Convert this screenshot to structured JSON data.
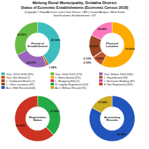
{
  "title": "Melung Rural Municipality, Dolakha District",
  "subtitle": "Status of Economic Establishments (Economic Census 2018)",
  "annotations": [
    "(Copyright © NepalArchives.Com | Data Source: CBS | Creator/Analysis: Milan Karki)",
    "Total Economic Establishments: 537"
  ],
  "legend_entries": [
    [
      {
        "name": "Year: 2013-2018 (225)",
        "color": "#3dbdbd"
      },
      {
        "name": "Year: Not Stated (7)",
        "color": "#cc5500"
      },
      {
        "name": "L: Traditional Market (1)",
        "color": "#aa4422"
      },
      {
        "name": "L: Other Locations (87)",
        "color": "#994422"
      },
      {
        "name": "Acct: With Record (444)",
        "color": "#2255bb"
      }
    ],
    [
      {
        "name": "Year: 2003-2013 (175)",
        "color": "#66bb44"
      },
      {
        "name": "L: Home Based (311)",
        "color": "#ffaa00"
      },
      {
        "name": "L: Shopping Mall (1)",
        "color": "#dd3366"
      },
      {
        "name": "R: Legally Registered (202)",
        "color": "#22aa44"
      },
      {
        "name": "Acct: Without Record (91)",
        "color": "#ccaa22"
      }
    ],
    [
      {
        "name": "Year: Before 2003 (130)",
        "color": "#9966bb"
      },
      {
        "name": "L: Road Based (98)",
        "color": "#bb5533"
      },
      {
        "name": "L: Exclusive Building (81)",
        "color": "#cc44aa"
      },
      {
        "name": "R: Not Registered (320)",
        "color": "#cc3322"
      }
    ]
  ],
  "chart_data": [
    {
      "type": "pie",
      "title": "Period of\nEstablishment",
      "values": [
        41.9,
        1.58,
        24.21,
        32.59
      ],
      "colors": [
        "#3dbdbd",
        "#cc5500",
        "#9966bb",
        "#66bb44"
      ],
      "value_labels": [
        "41.90%",
        "1.58%",
        "24.21%",
        "32.59%"
      ],
      "data_labels": true
    },
    {
      "type": "pie",
      "title": "Physical\nLocation",
      "values": [
        57.81,
        7.82,
        0.12,
        0.19,
        16.01,
        18.08
      ],
      "colors": [
        "#ffaa00",
        "#bb5533",
        "#dd3366",
        "#cc44aa",
        "#994422",
        "#ff77bb"
      ],
      "value_labels": [
        "57.81%",
        "7.82%",
        "0.12%",
        "0.19%",
        "16.01%",
        "18.08%"
      ],
      "data_labels": true
    },
    {
      "type": "pie",
      "title": "Registration\nStatus",
      "values": [
        37.62,
        0.1,
        62.36
      ],
      "colors": [
        "#22aa44",
        "#336699",
        "#cc3322"
      ],
      "value_labels": [
        "37.62%",
        null,
        "62.36%"
      ],
      "data_labels": true
    },
    {
      "type": "pie",
      "title": "Accounting\nRecords",
      "values": [
        82.98,
        17.04
      ],
      "colors": [
        "#2255bb",
        "#ccaa22"
      ],
      "value_labels": [
        "82.98%",
        "17.04%"
      ],
      "data_labels": true
    }
  ]
}
